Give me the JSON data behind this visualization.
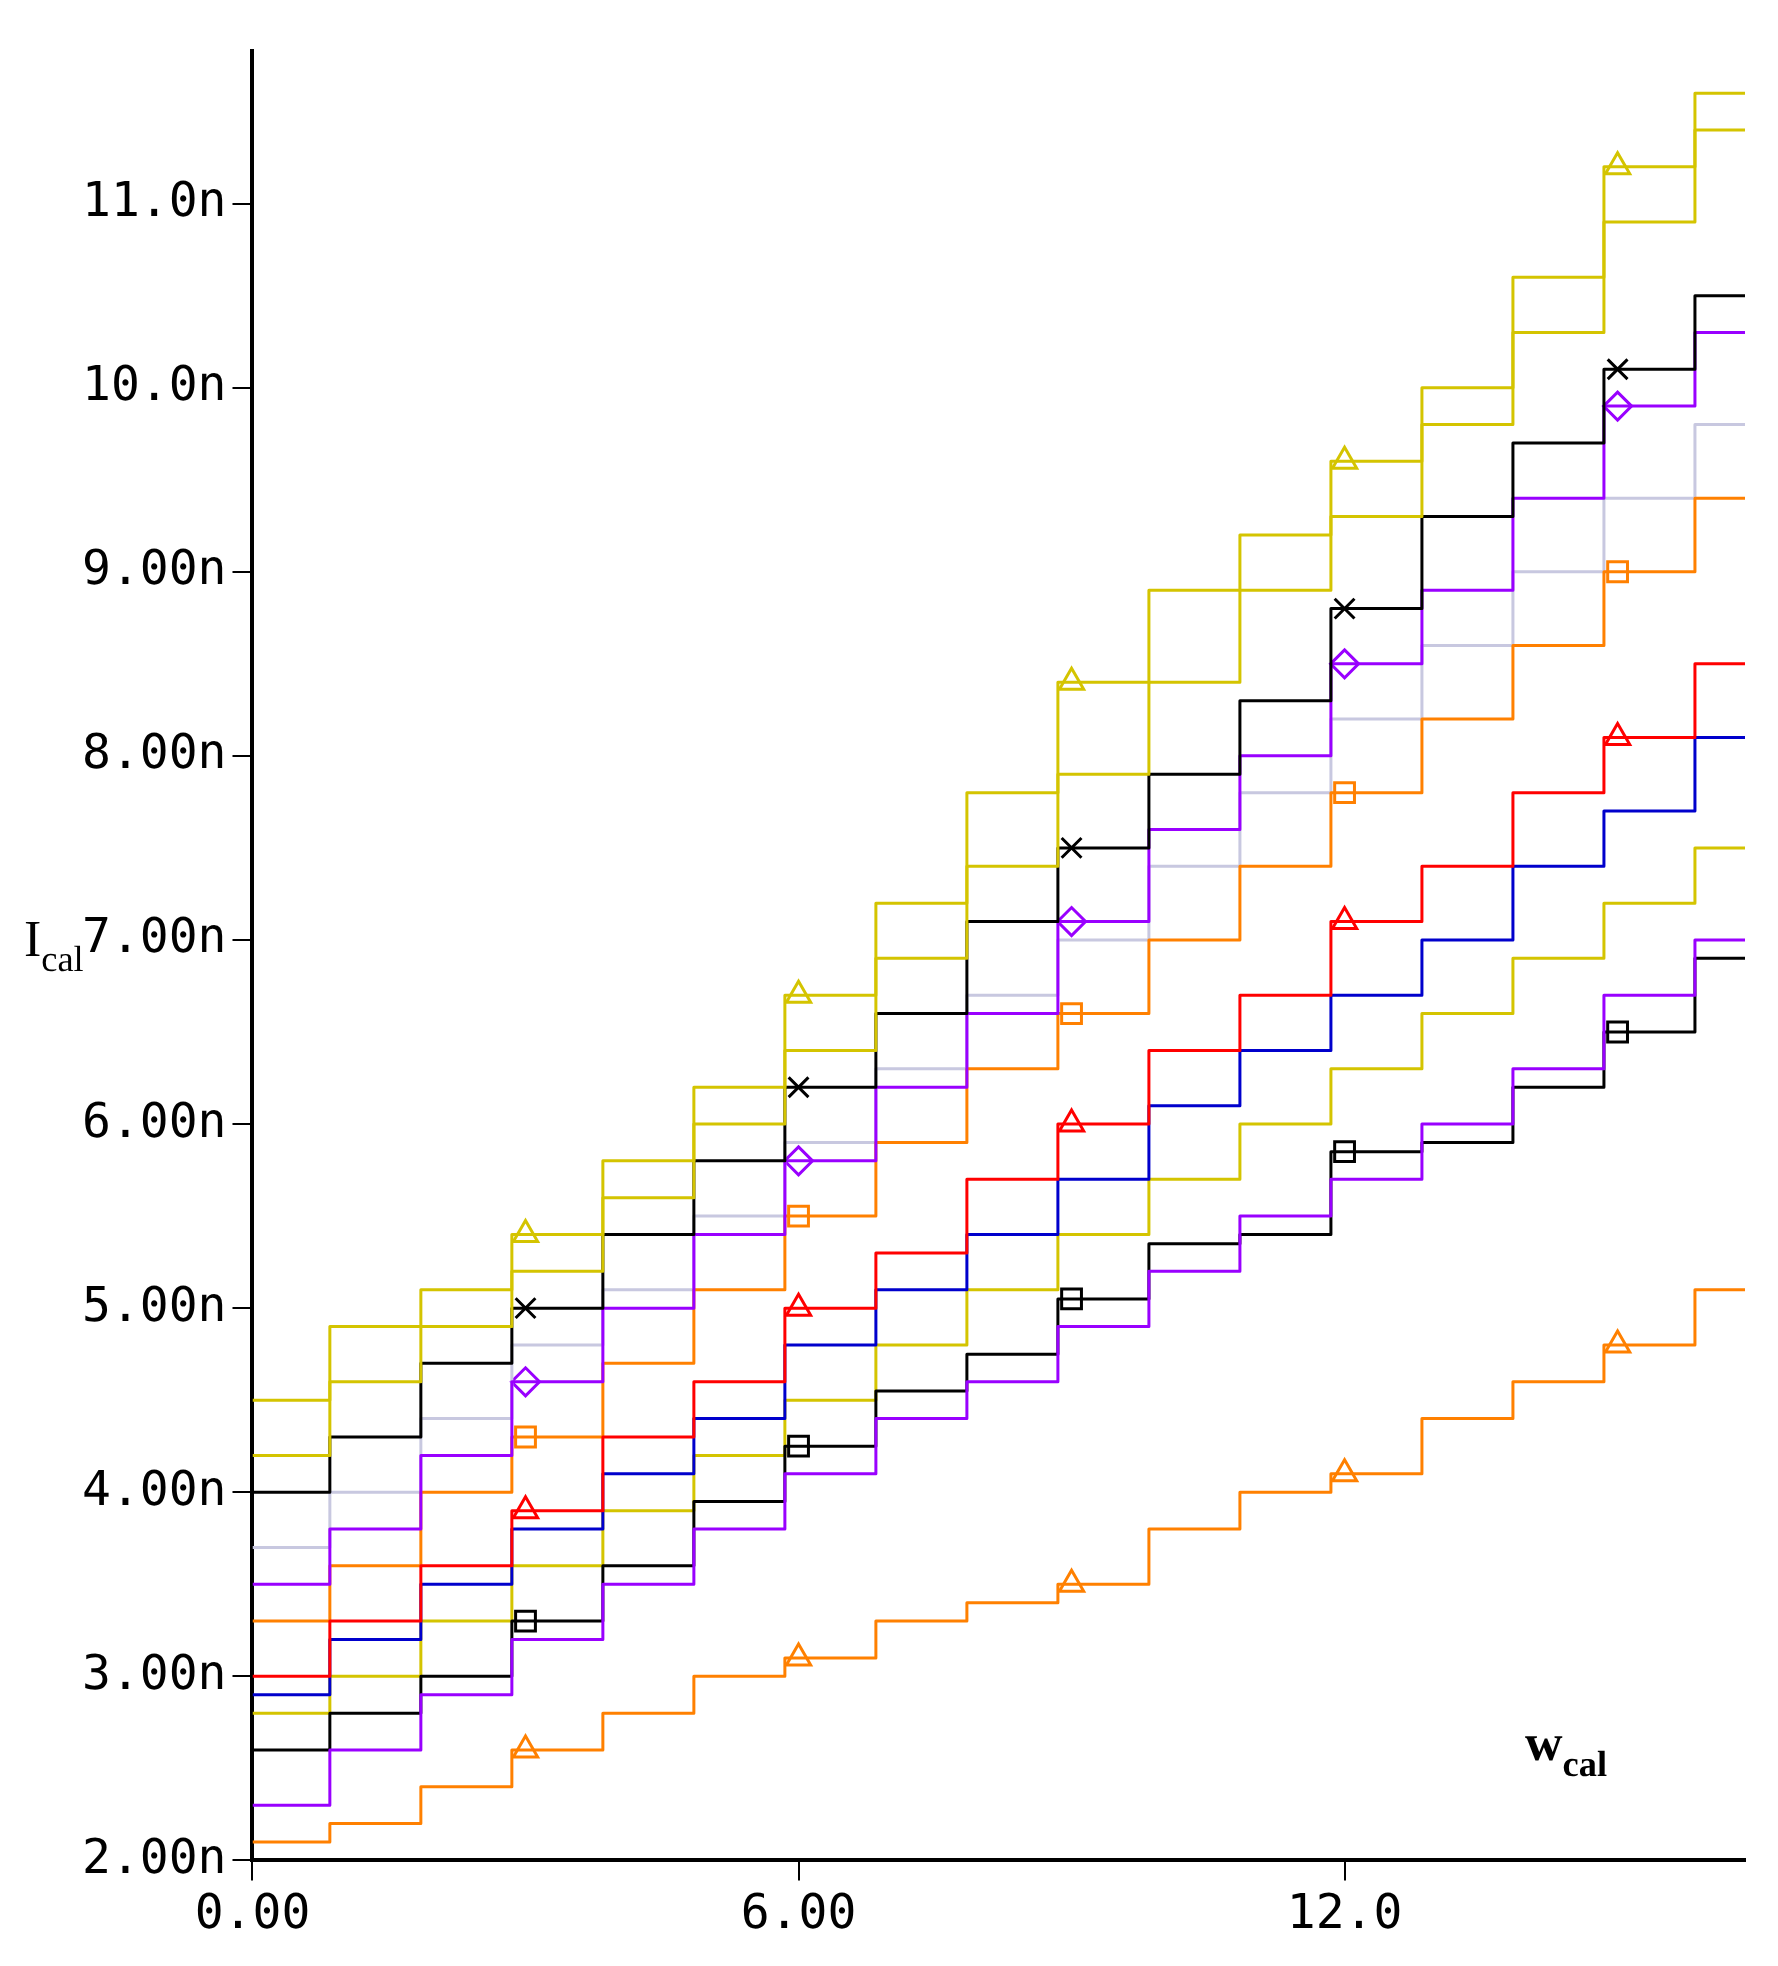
{
  "chart_data": {
    "type": "step",
    "xlabel": "w$_{cal}$",
    "ylabel": "I$_{cal}$",
    "xlim": [
      0,
      16.4
    ],
    "ylim": [
      2,
      11.83
    ],
    "xticks": [
      {
        "value": 0,
        "label": "0.00"
      },
      {
        "value": 6,
        "label": "6.00"
      },
      {
        "value": 12,
        "label": "12.0"
      }
    ],
    "yticks": [
      {
        "value": 2,
        "label": "2.00n"
      },
      {
        "value": 3,
        "label": "3.00n"
      },
      {
        "value": 4,
        "label": "4.00n"
      },
      {
        "value": 5,
        "label": "5.00n"
      },
      {
        "value": 6,
        "label": "6.00n"
      },
      {
        "value": 7,
        "label": "7.00n"
      },
      {
        "value": 8,
        "label": "8.00n"
      },
      {
        "value": 9,
        "label": "9.00n"
      },
      {
        "value": 10,
        "label": "10.0n"
      },
      {
        "value": 11,
        "label": "11.0n"
      }
    ],
    "x": [
      0,
      0.85,
      1.85,
      2.85,
      3.85,
      4.85,
      5.85,
      6.85,
      7.85,
      8.85,
      9.85,
      10.85,
      11.85,
      12.85,
      13.85,
      14.85,
      15.85,
      16.4
    ],
    "grid": false,
    "legend": false,
    "series": [
      {
        "color": "#d4c400",
        "values": [
          4.5,
          4.9,
          5.1,
          5.4,
          5.8,
          6.2,
          6.7,
          7.2,
          7.8,
          8.4,
          8.9,
          9.2,
          9.6,
          10.0,
          10.6,
          11.2,
          11.6,
          11.6
        ]
      },
      {
        "color": "#d4c400",
        "values": [
          4.2,
          4.6,
          4.9,
          5.2,
          5.6,
          6.0,
          6.4,
          6.9,
          7.4,
          7.9,
          8.4,
          8.9,
          9.3,
          9.8,
          10.3,
          10.9,
          11.4,
          11.4
        ]
      },
      {
        "color": "#ff8000",
        "values": [
          2.1,
          2.2,
          2.4,
          2.6,
          2.8,
          3.0,
          3.1,
          3.3,
          3.4,
          3.5,
          3.8,
          4.0,
          4.1,
          4.4,
          4.6,
          4.8,
          5.1,
          5.1
        ]
      },
      {
        "color": "#000000",
        "values": [
          4.0,
          4.3,
          4.7,
          5.0,
          5.4,
          5.8,
          6.2,
          6.6,
          7.1,
          7.5,
          7.9,
          8.3,
          8.8,
          9.3,
          9.7,
          10.1,
          10.5,
          10.5
        ]
      },
      {
        "color": "#9900ff",
        "values": [
          3.5,
          3.8,
          4.2,
          4.6,
          5.0,
          5.4,
          5.8,
          6.2,
          6.6,
          7.1,
          7.6,
          8.0,
          8.5,
          8.9,
          9.4,
          9.9,
          10.3,
          10.3
        ]
      },
      {
        "color": "#9900ff",
        "values": [
          2.3,
          2.6,
          2.9,
          3.2,
          3.5,
          3.8,
          4.1,
          4.4,
          4.6,
          4.9,
          5.2,
          5.5,
          5.7,
          6.0,
          6.3,
          6.7,
          7.0,
          7.0
        ]
      },
      {
        "color": "#ff0000",
        "values": [
          3.0,
          3.3,
          3.6,
          3.9,
          4.3,
          4.6,
          5.0,
          5.3,
          5.7,
          6.0,
          6.4,
          6.7,
          7.1,
          7.4,
          7.8,
          8.1,
          8.5,
          8.5
        ]
      },
      {
        "color": "#ff8000",
        "values": [
          3.3,
          3.6,
          4.0,
          4.3,
          4.7,
          5.1,
          5.5,
          5.9,
          6.3,
          6.6,
          7.0,
          7.4,
          7.8,
          8.2,
          8.6,
          9.0,
          9.4,
          9.4
        ]
      },
      {
        "color": "#000000",
        "values": [
          2.6,
          2.8,
          3.0,
          3.3,
          3.6,
          3.95,
          4.25,
          4.55,
          4.75,
          5.05,
          5.35,
          5.4,
          5.85,
          5.9,
          6.2,
          6.5,
          6.9,
          6.9
        ]
      },
      {
        "color": "#c8c8e0",
        "values": [
          3.7,
          4.0,
          4.4,
          4.8,
          5.1,
          5.5,
          5.9,
          6.3,
          6.7,
          7.0,
          7.4,
          7.8,
          8.2,
          8.6,
          9.0,
          9.4,
          9.8,
          9.8
        ]
      },
      {
        "color": "#0000cc",
        "values": [
          2.9,
          3.2,
          3.5,
          3.8,
          4.1,
          4.4,
          4.8,
          5.1,
          5.4,
          5.7,
          6.1,
          6.4,
          6.7,
          7.0,
          7.4,
          7.7,
          8.1,
          8.1
        ]
      },
      {
        "color": "#d4c400",
        "values": [
          2.8,
          3.0,
          3.3,
          3.6,
          3.9,
          4.2,
          4.5,
          4.8,
          5.1,
          5.4,
          5.7,
          6.0,
          6.3,
          6.6,
          6.9,
          7.2,
          7.5,
          7.5
        ]
      },
      {
        "type": "scatter",
        "marker": "triangle",
        "color": "#d4c400",
        "x": [
          3,
          6,
          9,
          12,
          15
        ],
        "values": [
          5.4,
          6.7,
          8.4,
          9.6,
          11.2
        ]
      },
      {
        "type": "scatter",
        "marker": "triangle",
        "color": "#ff8000",
        "x": [
          3,
          6,
          9,
          12,
          15
        ],
        "values": [
          2.6,
          3.1,
          3.5,
          4.1,
          4.8
        ]
      },
      {
        "type": "scatter",
        "marker": "diamond",
        "color": "#9900ff",
        "x": [
          3,
          6,
          9,
          12,
          15
        ],
        "values": [
          4.6,
          5.8,
          7.1,
          8.5,
          9.9
        ]
      },
      {
        "type": "scatter",
        "marker": "square",
        "color": "#000000",
        "x": [
          3,
          6,
          9,
          12,
          15
        ],
        "values": [
          3.3,
          4.25,
          5.05,
          5.85,
          6.5
        ]
      },
      {
        "type": "scatter",
        "marker": "triangle",
        "color": "#ff0000",
        "x": [
          3,
          6,
          9,
          12,
          15
        ],
        "values": [
          3.9,
          5.0,
          6.0,
          7.1,
          8.1
        ]
      },
      {
        "type": "scatter",
        "marker": "square",
        "color": "#ff8000",
        "x": [
          3,
          6,
          9,
          12,
          15
        ],
        "values": [
          4.3,
          5.5,
          6.6,
          7.8,
          9.0
        ]
      },
      {
        "type": "scatter",
        "marker": "cross",
        "color": "#000000",
        "x": [
          3,
          6,
          9,
          12,
          15
        ],
        "values": [
          5.0,
          6.2,
          7.5,
          8.8,
          10.1
        ]
      }
    ]
  }
}
